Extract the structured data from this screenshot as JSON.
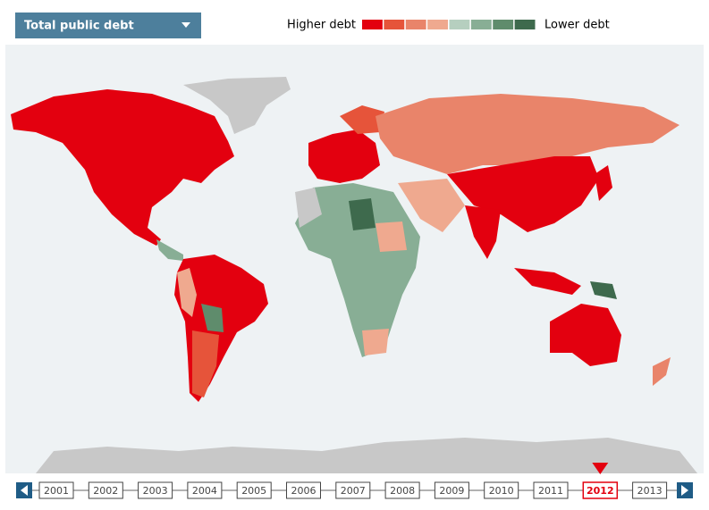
{
  "controls": {
    "dropdown": "Total public debt"
  },
  "legend": {
    "high_label": "Higher debt",
    "low_label": "Lower debt",
    "colors": [
      "#e3000f",
      "#e6543a",
      "#e9846a",
      "#efa98f",
      "#b6cfbf",
      "#88ae95",
      "#5f8c6c",
      "#3e6a4d"
    ]
  },
  "timeline": {
    "years": [
      "2001",
      "2002",
      "2003",
      "2004",
      "2005",
      "2006",
      "2007",
      "2008",
      "2009",
      "2010",
      "2011",
      "2012",
      "2013"
    ],
    "selected_index": 11
  }
}
